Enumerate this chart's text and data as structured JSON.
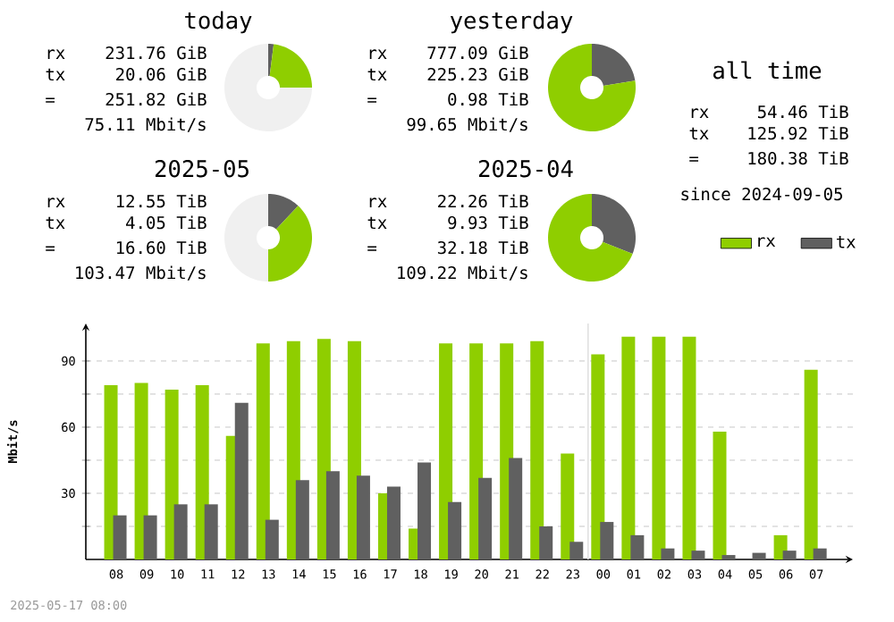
{
  "chart_data": [
    {
      "type": "donut",
      "title": "today",
      "categories": [
        null,
        null,
        null
      ],
      "values": [
        2,
        23,
        75
      ],
      "colors": [
        "#606060",
        "#8fce00",
        "#f0f0f0"
      ],
      "annotations": [
        "rx",
        "231.76 GiB",
        "tx",
        "20.06 GiB",
        "=",
        "251.82 GiB",
        "75.11 Mbit/s"
      ]
    },
    {
      "type": "donut",
      "title": "yesterday",
      "categories": [
        null,
        null
      ],
      "values": [
        22.5,
        77.5
      ],
      "colors": [
        "#606060",
        "#8fce00"
      ],
      "annotations": [
        "rx",
        "777.09 GiB",
        "tx",
        "225.23 GiB",
        "=",
        "0.98 TiB",
        "99.65 Mbit/s"
      ]
    },
    {
      "type": "other",
      "title": "all time",
      "annotations": [
        "rx",
        "54.46 TiB",
        "tx",
        "125.92 TiB",
        "=",
        "180.38 TiB",
        "since 2024-09-05"
      ]
    },
    {
      "type": "donut",
      "title": "2025-05",
      "categories": [
        null,
        null,
        null
      ],
      "values": [
        12,
        38,
        50
      ],
      "colors": [
        "#606060",
        "#8fce00",
        "#f0f0f0"
      ],
      "annotations": [
        "rx",
        "12.55 TiB",
        "tx",
        "4.05 TiB",
        "=",
        "16.60 TiB",
        "103.47 Mbit/s"
      ]
    },
    {
      "type": "donut",
      "title": "2025-04",
      "categories": [
        null,
        null
      ],
      "values": [
        31,
        69
      ],
      "colors": [
        "#606060",
        "#8fce00"
      ],
      "annotations": [
        "rx",
        "22.26 TiB",
        "tx",
        "9.93 TiB",
        "=",
        "32.18 TiB",
        "109.22 Mbit/s"
      ]
    },
    {
      "type": "bar",
      "ylabel": "Mbit/s",
      "categories": [
        "08",
        "09",
        "10",
        "11",
        "12",
        "13",
        "14",
        "15",
        "16",
        "17",
        "18",
        "19",
        "20",
        "21",
        "22",
        "23",
        "00",
        "01",
        "02",
        "03",
        "04",
        "05",
        "06",
        "07"
      ],
      "series": [
        {
          "name": "rx",
          "color": "#8fce00",
          "values": [
            79,
            80,
            77,
            79,
            56,
            98,
            99,
            100,
            99,
            30,
            14,
            98,
            98,
            98,
            99,
            48,
            93,
            101,
            101,
            101,
            58,
            0,
            11,
            86
          ]
        },
        {
          "name": "tx",
          "color": "#606060",
          "values": [
            20,
            20,
            25,
            25,
            71,
            18,
            36,
            40,
            38,
            33,
            44,
            26,
            37,
            46,
            15,
            8,
            17,
            11,
            5,
            4,
            2,
            3,
            4,
            5
          ]
        }
      ],
      "ylim": [
        0,
        107
      ],
      "yticks": [
        {
          "value": 15,
          "label": null
        },
        30,
        {
          "value": 45,
          "label": null
        },
        60,
        {
          "value": 75,
          "label": null
        },
        90
      ],
      "grid": "y",
      "legend": "top right",
      "ref_lines": [
        {
          "axis": "x",
          "value": "00",
          "color": "#e0e0e0"
        }
      ],
      "annotations": [
        "2025-05-17 08:00"
      ]
    }
  ]
}
